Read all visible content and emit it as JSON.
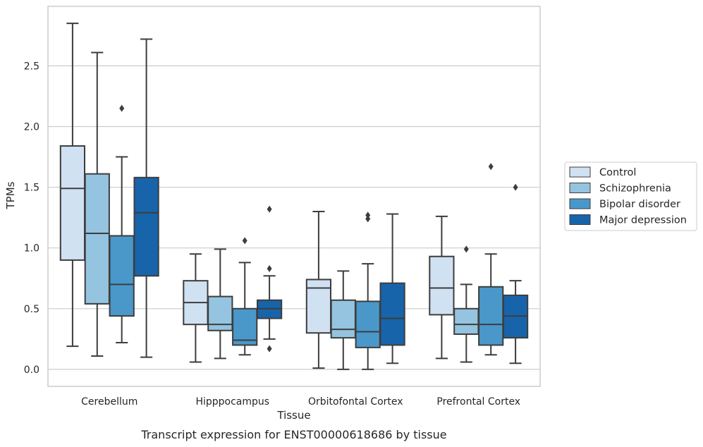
{
  "chart_data": {
    "type": "box",
    "caption": "Transcript expression for ENST00000618686 by tissue",
    "xlabel": "Tissue",
    "ylabel": "TPMs",
    "ylim": [
      -0.14,
      2.99
    ],
    "yticks": [
      0.0,
      0.5,
      1.0,
      1.5,
      2.0,
      2.5
    ],
    "ytick_labels": [
      "0.0",
      "0.5",
      "1.0",
      "1.5",
      "2.0",
      "2.5"
    ],
    "grid": "horizontal",
    "legend_position": "right",
    "categories": [
      "Cerebellum",
      "Hipppocampus",
      "Orbitofontal Cortex",
      "Prefrontal Cortex"
    ],
    "series": [
      {
        "name": "Control",
        "color": "#d0e1f2",
        "boxes": [
          {
            "whislo": 0.19,
            "q1": 0.9,
            "med": 1.49,
            "q3": 1.84,
            "whishi": 2.85,
            "fliers": []
          },
          {
            "whislo": 0.06,
            "q1": 0.37,
            "med": 0.55,
            "q3": 0.73,
            "whishi": 0.95,
            "fliers": []
          },
          {
            "whislo": 0.01,
            "q1": 0.3,
            "med": 0.67,
            "q3": 0.74,
            "whishi": 1.3,
            "fliers": []
          },
          {
            "whislo": 0.09,
            "q1": 0.45,
            "med": 0.67,
            "q3": 0.93,
            "whishi": 1.26,
            "fliers": []
          }
        ]
      },
      {
        "name": "Schizophrenia",
        "color": "#94c4df",
        "boxes": [
          {
            "whislo": 0.11,
            "q1": 0.54,
            "med": 1.12,
            "q3": 1.61,
            "whishi": 2.61,
            "fliers": []
          },
          {
            "whislo": 0.09,
            "q1": 0.32,
            "med": 0.37,
            "q3": 0.6,
            "whishi": 0.99,
            "fliers": []
          },
          {
            "whislo": 0.0,
            "q1": 0.26,
            "med": 0.33,
            "q3": 0.57,
            "whishi": 0.81,
            "fliers": []
          },
          {
            "whislo": 0.06,
            "q1": 0.29,
            "med": 0.37,
            "q3": 0.5,
            "whishi": 0.7,
            "fliers": [
              0.99
            ]
          }
        ]
      },
      {
        "name": "Bipolar disorder",
        "color": "#4a98c9",
        "boxes": [
          {
            "whislo": 0.22,
            "q1": 0.44,
            "med": 0.7,
            "q3": 1.1,
            "whishi": 1.75,
            "fliers": [
              2.15
            ]
          },
          {
            "whislo": 0.12,
            "q1": 0.2,
            "med": 0.24,
            "q3": 0.5,
            "whishi": 0.88,
            "fliers": [
              1.06
            ]
          },
          {
            "whislo": 0.0,
            "q1": 0.18,
            "med": 0.31,
            "q3": 0.56,
            "whishi": 0.87,
            "fliers": [
              1.24,
              1.27
            ]
          },
          {
            "whislo": 0.12,
            "q1": 0.2,
            "med": 0.37,
            "q3": 0.68,
            "whishi": 0.95,
            "fliers": [
              1.67
            ]
          }
        ]
      },
      {
        "name": "Major depression",
        "color": "#1764ab",
        "boxes": [
          {
            "whislo": 0.1,
            "q1": 0.77,
            "med": 1.29,
            "q3": 1.58,
            "whishi": 2.72,
            "fliers": []
          },
          {
            "whislo": 0.25,
            "q1": 0.42,
            "med": 0.5,
            "q3": 0.57,
            "whishi": 0.77,
            "fliers": [
              0.17,
              0.83,
              1.32
            ]
          },
          {
            "whislo": 0.05,
            "q1": 0.2,
            "med": 0.42,
            "q3": 0.71,
            "whishi": 1.28,
            "fliers": []
          },
          {
            "whislo": 0.05,
            "q1": 0.26,
            "med": 0.44,
            "q3": 0.61,
            "whishi": 0.73,
            "fliers": [
              1.5
            ]
          }
        ]
      }
    ]
  }
}
